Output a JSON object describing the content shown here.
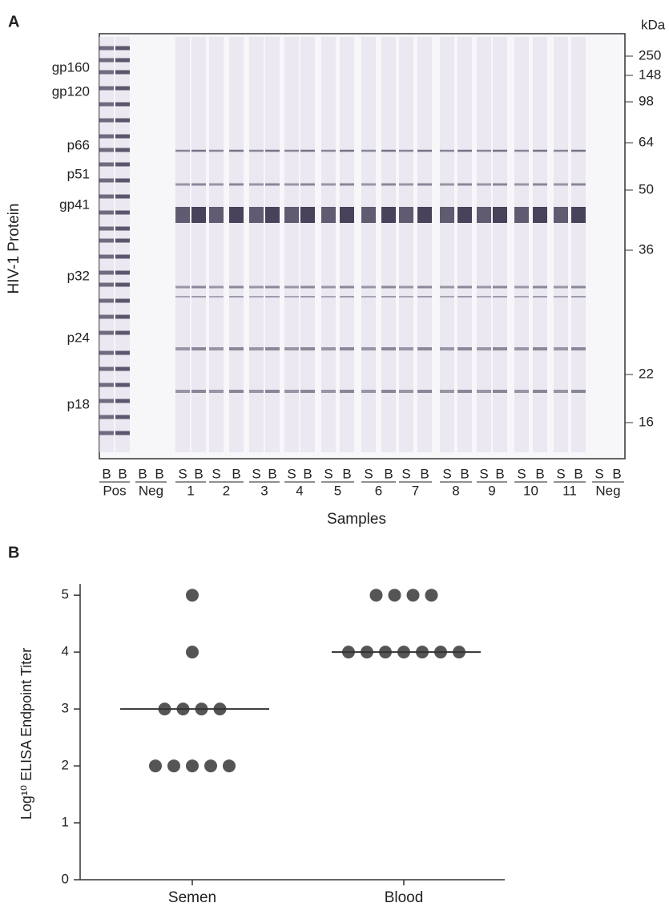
{
  "panel_a": {
    "label": "A",
    "y_title": "HIV-1 Protein",
    "x_title": "Samples",
    "marker_unit": "kDa",
    "proteins": [
      "gp160",
      "gp120",
      "p66",
      "p51",
      "gp41",
      "p32",
      "p24",
      "p18"
    ],
    "markers": [
      "250",
      "148",
      "98",
      "64",
      "50",
      "36",
      "22",
      "16"
    ],
    "lane_groups": [
      {
        "lanes": [
          "B",
          "B"
        ],
        "label": "Pos"
      },
      {
        "lanes": [
          "B",
          "B"
        ],
        "label": "Neg"
      },
      {
        "lanes": [
          "S",
          "B"
        ],
        "label": "1"
      },
      {
        "lanes": [
          "S",
          "B"
        ],
        "label": "2"
      },
      {
        "lanes": [
          "S",
          "B"
        ],
        "label": "3"
      },
      {
        "lanes": [
          "S",
          "B"
        ],
        "label": "4"
      },
      {
        "lanes": [
          "S",
          "B"
        ],
        "label": "5"
      },
      {
        "lanes": [
          "S",
          "B"
        ],
        "label": "6"
      },
      {
        "lanes": [
          "S",
          "B"
        ],
        "label": "7"
      },
      {
        "lanes": [
          "S",
          "B"
        ],
        "label": "8"
      },
      {
        "lanes": [
          "S",
          "B"
        ],
        "label": "9"
      },
      {
        "lanes": [
          "S",
          "B"
        ],
        "label": "10"
      },
      {
        "lanes": [
          "S",
          "B"
        ],
        "label": "11"
      },
      {
        "lanes": [
          "S",
          "B"
        ],
        "label": "Neg"
      }
    ]
  },
  "chart_data": {
    "type": "dot",
    "label": "B",
    "ylabel": "Log¹⁰ ELISA Endpoint Titer",
    "categories": [
      "Semen",
      "Blood"
    ],
    "values": [
      [
        5,
        4,
        3,
        3,
        3,
        3,
        2,
        2,
        2,
        2,
        2
      ],
      [
        5,
        5,
        5,
        5,
        4,
        4,
        4,
        4,
        4,
        4,
        4
      ]
    ],
    "medians": [
      3,
      4
    ],
    "color": "#555555",
    "ylim": [
      0,
      5.2
    ],
    "yticks": [
      0,
      1,
      2,
      3,
      4,
      5
    ]
  }
}
